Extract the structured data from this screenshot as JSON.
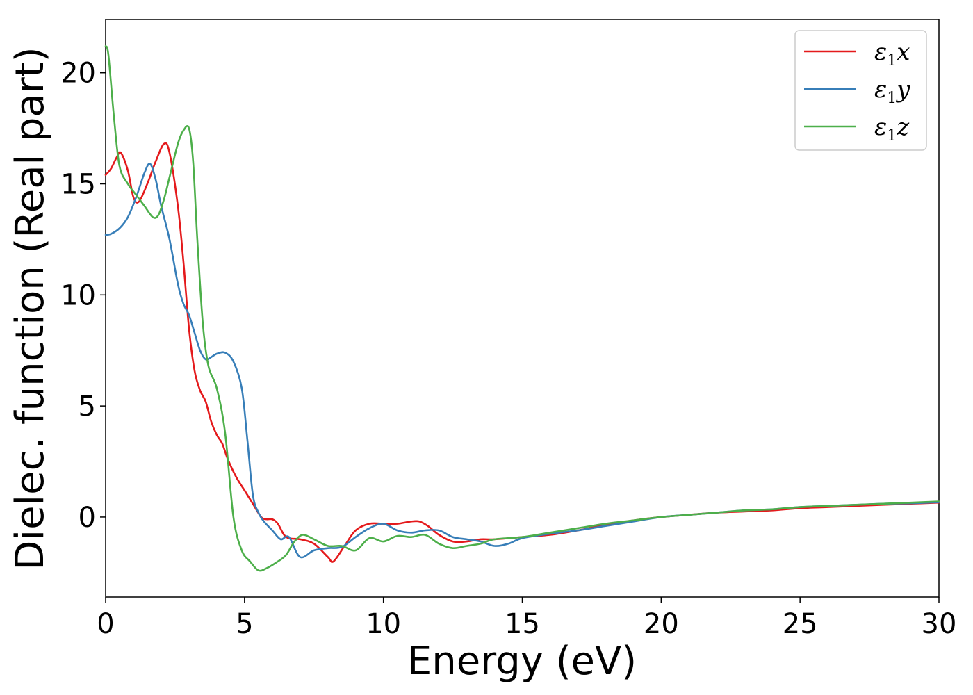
{
  "chart_data": {
    "type": "line",
    "title": "",
    "xlabel": "Energy (eV)",
    "ylabel": "Dielec. function (Real part)",
    "xlim": [
      0,
      30
    ],
    "ylim": [
      -3.6,
      22.4
    ],
    "xticks": [
      0,
      5,
      10,
      15,
      20,
      25,
      30
    ],
    "yticks": [
      0,
      5,
      10,
      15,
      20
    ],
    "grid": false,
    "legend_position": "top-right",
    "series": [
      {
        "name": "ε1x",
        "base": "ε",
        "sub": "1",
        "var": "x",
        "color": "#e41a1c",
        "x": [
          0,
          0.2,
          0.4,
          0.55,
          0.8,
          1.0,
          1.2,
          1.5,
          1.8,
          2.1,
          2.3,
          2.6,
          2.8,
          3.0,
          3.2,
          3.4,
          3.6,
          3.8,
          4.0,
          4.2,
          4.4,
          4.7,
          5.0,
          5.3,
          5.6,
          5.8,
          6.0,
          6.2,
          6.5,
          7.0,
          7.5,
          8.0,
          8.2,
          8.6,
          9.0,
          9.5,
          10.0,
          10.5,
          11.0,
          11.3,
          11.6,
          12.0,
          12.5,
          13.0,
          13.5,
          14.0,
          15.0,
          16.0,
          17.0,
          18.0,
          19.0,
          20.0,
          21.0,
          22.0,
          23.0,
          24.0,
          25.0,
          26.0,
          27.0,
          28.0,
          29.0,
          30.0
        ],
        "y": [
          15.4,
          15.7,
          16.2,
          16.4,
          15.6,
          14.4,
          14.2,
          15.0,
          16.0,
          16.8,
          16.4,
          14.0,
          11.5,
          8.5,
          6.6,
          5.7,
          5.2,
          4.3,
          3.7,
          3.3,
          2.6,
          1.8,
          1.2,
          0.6,
          0.0,
          -0.1,
          -0.1,
          -0.3,
          -0.9,
          -1.0,
          -1.2,
          -1.8,
          -2.0,
          -1.3,
          -0.6,
          -0.3,
          -0.3,
          -0.3,
          -0.2,
          -0.2,
          -0.4,
          -0.8,
          -1.1,
          -1.1,
          -1.0,
          -1.0,
          -0.9,
          -0.8,
          -0.6,
          -0.35,
          -0.15,
          0.0,
          0.1,
          0.2,
          0.25,
          0.3,
          0.4,
          0.45,
          0.5,
          0.55,
          0.6,
          0.65
        ]
      },
      {
        "name": "ε1y",
        "base": "ε",
        "sub": "1",
        "var": "y",
        "color": "#377eb8",
        "x": [
          0,
          0.2,
          0.5,
          0.8,
          1.1,
          1.4,
          1.6,
          1.8,
          2.0,
          2.3,
          2.6,
          2.8,
          3.0,
          3.2,
          3.4,
          3.6,
          3.8,
          4.0,
          4.3,
          4.6,
          4.9,
          5.1,
          5.3,
          5.5,
          5.7,
          6.0,
          6.3,
          6.6,
          7.0,
          7.5,
          8.0,
          8.5,
          9.0,
          9.5,
          10.0,
          10.5,
          11.0,
          11.5,
          12.0,
          12.5,
          13.0,
          13.5,
          14.0,
          14.5,
          15.0,
          16.0,
          17.0,
          18.0,
          19.0,
          20.0,
          21.0,
          22.0,
          23.0,
          24.0,
          25.0,
          26.0,
          27.0,
          28.0,
          29.0,
          30.0
        ],
        "y": [
          12.7,
          12.75,
          13.0,
          13.5,
          14.4,
          15.5,
          15.9,
          15.2,
          14.0,
          12.5,
          10.5,
          9.6,
          9.1,
          8.3,
          7.5,
          7.1,
          7.2,
          7.35,
          7.4,
          7.0,
          5.8,
          3.5,
          1.0,
          0.2,
          -0.2,
          -0.6,
          -1.0,
          -0.9,
          -1.8,
          -1.5,
          -1.4,
          -1.35,
          -0.9,
          -0.5,
          -0.3,
          -0.6,
          -0.7,
          -0.6,
          -0.6,
          -0.9,
          -1.0,
          -1.1,
          -1.3,
          -1.2,
          -0.95,
          -0.75,
          -0.6,
          -0.4,
          -0.2,
          0.0,
          0.1,
          0.2,
          0.3,
          0.35,
          0.45,
          0.5,
          0.55,
          0.6,
          0.62,
          0.67
        ]
      },
      {
        "name": "ε1z",
        "base": "ε",
        "sub": "1",
        "var": "z",
        "color": "#4daf4a",
        "x": [
          0,
          0.1,
          0.3,
          0.5,
          0.8,
          1.1,
          1.4,
          1.7,
          1.9,
          2.1,
          2.3,
          2.6,
          2.8,
          3.0,
          3.15,
          3.3,
          3.5,
          3.7,
          4.0,
          4.3,
          4.6,
          4.9,
          5.2,
          5.5,
          5.8,
          6.2,
          6.5,
          6.8,
          7.1,
          7.5,
          8.0,
          8.5,
          9.0,
          9.5,
          10.0,
          10.5,
          11.0,
          11.5,
          12.0,
          12.5,
          13.0,
          13.5,
          14.0,
          15.0,
          16.0,
          17.0,
          18.0,
          19.0,
          20.0,
          21.0,
          22.0,
          23.0,
          24.0,
          25.0,
          26.0,
          27.0,
          28.0,
          29.0,
          30.0
        ],
        "y": [
          21.2,
          20.8,
          18.0,
          15.8,
          15.0,
          14.5,
          14.0,
          13.5,
          13.6,
          14.3,
          15.3,
          16.8,
          17.4,
          17.5,
          16.0,
          12.5,
          8.7,
          6.8,
          5.8,
          3.8,
          0.0,
          -1.5,
          -2.0,
          -2.4,
          -2.3,
          -2.0,
          -1.7,
          -1.1,
          -0.8,
          -1.0,
          -1.3,
          -1.3,
          -1.5,
          -0.95,
          -1.1,
          -0.85,
          -0.9,
          -0.8,
          -1.2,
          -1.4,
          -1.3,
          -1.2,
          -1.0,
          -0.9,
          -0.7,
          -0.5,
          -0.3,
          -0.15,
          0.0,
          0.1,
          0.2,
          0.3,
          0.35,
          0.45,
          0.5,
          0.55,
          0.6,
          0.65,
          0.7
        ]
      }
    ]
  }
}
